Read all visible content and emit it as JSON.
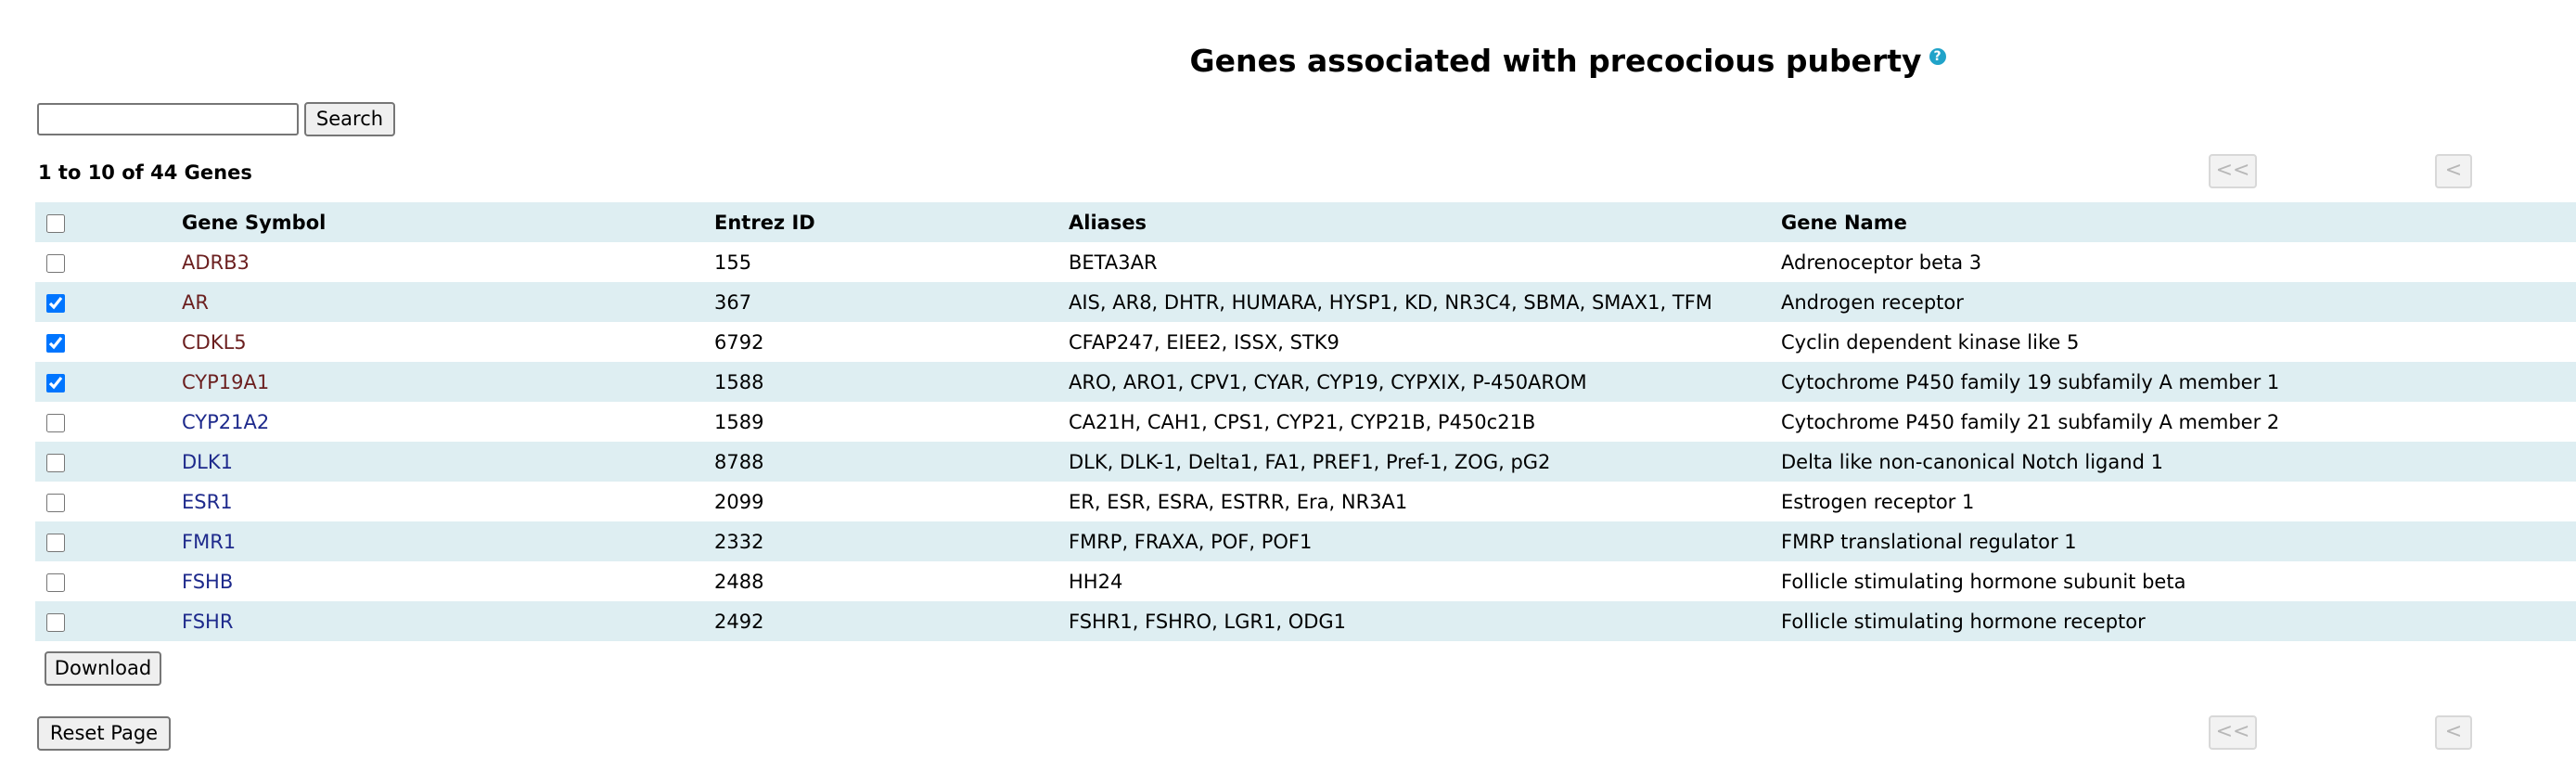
{
  "page": {
    "title": "Genes associated with precocious puberty",
    "help_icon": "?"
  },
  "search": {
    "value": "",
    "placeholder": "",
    "button_label": "Search"
  },
  "results": {
    "count_text": "1 to 10 of 44 Genes"
  },
  "pager": {
    "first_label": "<<",
    "prev_label": "<"
  },
  "table": {
    "headers": {
      "symbol": "Gene Symbol",
      "entrez": "Entrez ID",
      "aliases": "Aliases",
      "name": "Gene Name"
    },
    "rows": [
      {
        "checked": false,
        "symbol": "ADRB3",
        "entrez": "155",
        "aliases": "BETA3AR",
        "name": "Adrenoceptor beta 3",
        "link_color": "brown"
      },
      {
        "checked": true,
        "symbol": "AR",
        "entrez": "367",
        "aliases": "AIS, AR8, DHTR, HUMARA, HYSP1, KD, NR3C4, SBMA, SMAX1, TFM",
        "name": "Androgen receptor",
        "link_color": "brown"
      },
      {
        "checked": true,
        "symbol": "CDKL5",
        "entrez": "6792",
        "aliases": "CFAP247, EIEE2, ISSX, STK9",
        "name": "Cyclin dependent kinase like 5",
        "link_color": "brown"
      },
      {
        "checked": true,
        "symbol": "CYP19A1",
        "entrez": "1588",
        "aliases": "ARO, ARO1, CPV1, CYAR, CYP19, CYPXIX, P-450AROM",
        "name": "Cytochrome P450 family 19 subfamily A member 1",
        "link_color": "brown"
      },
      {
        "checked": false,
        "symbol": "CYP21A2",
        "entrez": "1589",
        "aliases": "CA21H, CAH1, CPS1, CYP21, CYP21B, P450c21B",
        "name": "Cytochrome P450 family 21 subfamily A member 2",
        "link_color": "navy"
      },
      {
        "checked": false,
        "symbol": "DLK1",
        "entrez": "8788",
        "aliases": "DLK, DLK-1, Delta1, FA1, PREF1, Pref-1, ZOG, pG2",
        "name": "Delta like non-canonical Notch ligand 1",
        "link_color": "navy"
      },
      {
        "checked": false,
        "symbol": "ESR1",
        "entrez": "2099",
        "aliases": "ER, ESR, ESRA, ESTRR, Era, NR3A1",
        "name": "Estrogen receptor 1",
        "link_color": "navy"
      },
      {
        "checked": false,
        "symbol": "FMR1",
        "entrez": "2332",
        "aliases": "FMRP, FRAXA, POF, POF1",
        "name": "FMRP translational regulator 1",
        "link_color": "navy"
      },
      {
        "checked": false,
        "symbol": "FSHB",
        "entrez": "2488",
        "aliases": "HH24",
        "name": "Follicle stimulating hormone subunit beta",
        "link_color": "navy"
      },
      {
        "checked": false,
        "symbol": "FSHR",
        "entrez": "2492",
        "aliases": "FSHR1, FSHRO, LGR1, ODG1",
        "name": "Follicle stimulating hormone receptor",
        "link_color": "navy"
      }
    ]
  },
  "actions": {
    "download_label": "Download",
    "reset_label": "Reset Page"
  },
  "colors": {
    "row_shaded": "#deeef2",
    "link_brown": "#6b1f1f",
    "link_navy": "#1e2a8c",
    "help_icon": "#20a3c9"
  }
}
